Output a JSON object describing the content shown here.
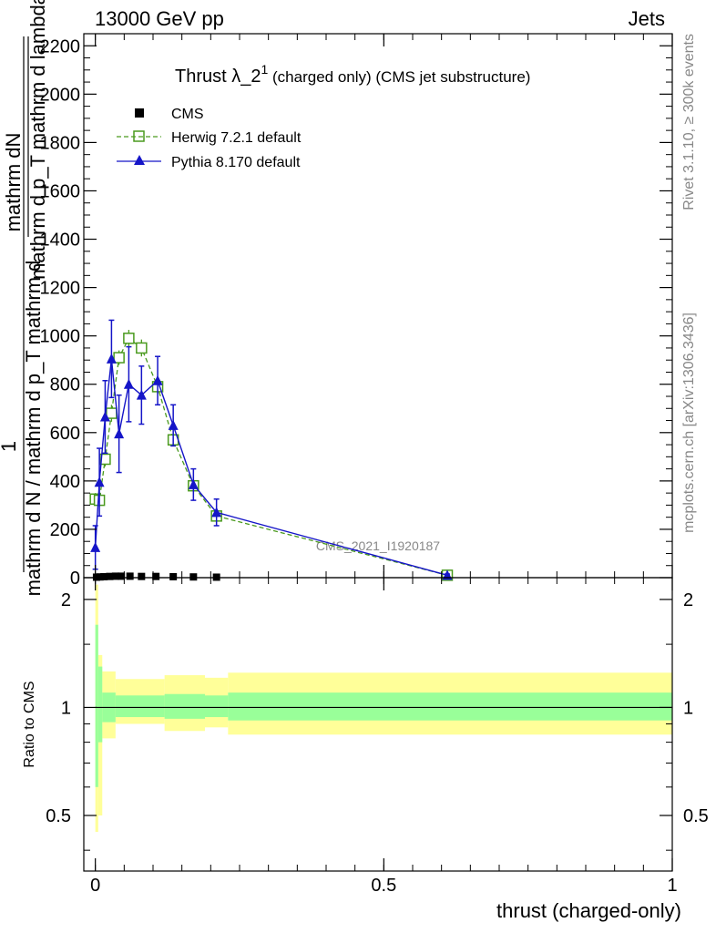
{
  "header": {
    "left": "13000 GeV pp",
    "right": "Jets"
  },
  "side": {
    "rivet": "Rivet 3.1.10, ≥ 300k events",
    "mcplots": "mcplots.cern.ch [arXiv:1306.3436]"
  },
  "chart_data": [
    {
      "type": "line",
      "title_main": "Thrust λ_2",
      "title_sup": "1",
      "title_sub": " (charged only) (CMS jet substructure)",
      "ylabel_top": "mathrm dN",
      "ylabel_top2": "mathrm d p_T mathrm d lambda",
      "ylabel_num": "1",
      "ylabel_bottom": "mathrm d N / mathrm d p_T mathrm d",
      "watermark": "CMS_2021_I1920187",
      "xlim": [
        -0.02,
        1.0
      ],
      "ylim": [
        0,
        2250
      ],
      "yticks": [
        0,
        200,
        400,
        600,
        800,
        1000,
        1200,
        1400,
        1600,
        1800,
        2000,
        2200
      ],
      "ytick_labels": [
        "0",
        "200",
        "400",
        "600",
        "800",
        "1000",
        "1200",
        "1400",
        "1600",
        "1800",
        "2000",
        "2200"
      ],
      "legend_position": "top-left",
      "series": [
        {
          "name": "CMS",
          "color": "#000000",
          "marker": "square",
          "x": [
            0.002,
            0.008,
            0.015,
            0.025,
            0.035,
            0.045,
            0.06,
            0.08,
            0.105,
            0.135,
            0.17,
            0.21
          ],
          "y": [
            2,
            3,
            4,
            5,
            6,
            6,
            6,
            5,
            5,
            4,
            3,
            2
          ]
        },
        {
          "name": "Herwig 7.2.1 default",
          "color": "#4a9a1e",
          "marker": "open-square",
          "x": [
            0.0,
            0.007,
            0.017,
            0.028,
            0.041,
            0.058,
            0.08,
            0.108,
            0.135,
            0.17,
            0.21,
            0.61
          ],
          "y": [
            325,
            320,
            490,
            680,
            910,
            990,
            950,
            790,
            570,
            380,
            255,
            10
          ],
          "err": [
            25,
            25,
            30,
            35,
            30,
            35,
            35,
            30,
            25,
            20,
            20,
            5
          ]
        },
        {
          "name": "Pythia 8.170 default",
          "color": "#1515c8",
          "marker": "triangle",
          "x": [
            0.0,
            0.007,
            0.017,
            0.028,
            0.041,
            0.058,
            0.08,
            0.108,
            0.135,
            0.17,
            0.21,
            0.61
          ],
          "y": [
            125,
            395,
            665,
            905,
            595,
            800,
            755,
            815,
            630,
            385,
            270,
            10
          ],
          "err": [
            90,
            140,
            150,
            160,
            160,
            155,
            120,
            100,
            85,
            65,
            55,
            5
          ]
        }
      ]
    },
    {
      "type": "area",
      "ylabel": "Ratio to CMS",
      "xlabel": "thrust (charged-only)",
      "xlim": [
        -0.02,
        1.0
      ],
      "ylim": [
        0.35,
        2.3
      ],
      "log_y": true,
      "yticks": [
        0.5,
        1,
        2
      ],
      "ytick_labels": [
        "0.5",
        "1",
        "2"
      ],
      "xticks": [
        0,
        0.5,
        1
      ],
      "xtick_labels": [
        "0",
        "0.5",
        "1"
      ],
      "reference": 1,
      "bin_edges": [
        0.0,
        0.005,
        0.012,
        0.035,
        0.12,
        0.19,
        0.23,
        1.0
      ],
      "yellow_band": {
        "color": "#ffff99",
        "low": [
          0.45,
          0.5,
          0.82,
          0.9,
          0.86,
          0.88,
          0.84
        ],
        "high": [
          2.2,
          1.4,
          1.26,
          1.2,
          1.23,
          1.21,
          1.25
        ]
      },
      "green_band": {
        "color": "#99ff99",
        "low": [
          0.6,
          0.8,
          0.91,
          0.94,
          0.93,
          0.94,
          0.92
        ],
        "high": [
          1.7,
          1.3,
          1.1,
          1.08,
          1.09,
          1.08,
          1.1
        ]
      }
    }
  ]
}
